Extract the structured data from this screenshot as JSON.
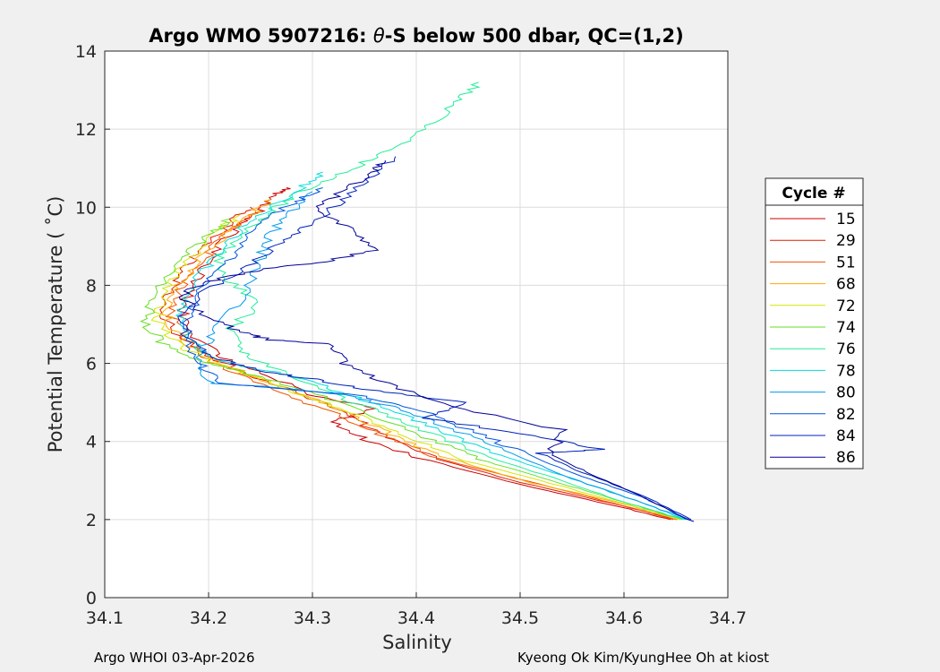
{
  "chart_data": {
    "type": "line",
    "title": "Argo WMO 5907216: θ-S below 500 dbar,  QC=(1,2)",
    "title_parts": {
      "prefix": "Argo WMO 5907216: ",
      "symbol": "θ",
      "suffix": "-S below 500 dbar,  QC=(1,2)"
    },
    "xlabel": "Salinity",
    "ylabel": "Potential Temperature ( ˚C)",
    "xlim": [
      34.1,
      34.7
    ],
    "ylim": [
      0,
      14
    ],
    "xticks": [
      34.1,
      34.2,
      34.3,
      34.4,
      34.5,
      34.6,
      34.7
    ],
    "xtick_labels": [
      "34.1",
      "34.2",
      "34.3",
      "34.4",
      "34.5",
      "34.6",
      "34.7"
    ],
    "yticks": [
      0,
      2,
      4,
      6,
      8,
      10,
      12,
      14
    ],
    "ytick_labels": [
      "0",
      "2",
      "4",
      "6",
      "8",
      "10",
      "12",
      "14"
    ],
    "grid": true,
    "legend_title": "Cycle #",
    "legend_position": "right",
    "series": [
      {
        "name": "15",
        "color": "#cc0000",
        "points": [
          [
            34.645,
            2.0
          ],
          [
            34.6,
            2.3
          ],
          [
            34.5,
            2.9
          ],
          [
            34.4,
            3.6
          ],
          [
            34.35,
            4.05
          ],
          [
            34.32,
            4.5
          ],
          [
            34.36,
            4.85
          ],
          [
            34.3,
            5.2
          ],
          [
            34.25,
            5.75
          ],
          [
            34.21,
            6.2
          ],
          [
            34.19,
            6.6
          ],
          [
            34.175,
            7.2
          ],
          [
            34.18,
            7.8
          ],
          [
            34.195,
            8.4
          ],
          [
            34.21,
            9.0
          ],
          [
            34.23,
            9.5
          ],
          [
            34.25,
            9.9
          ],
          [
            34.265,
            10.3
          ],
          [
            34.275,
            10.5
          ]
        ]
      },
      {
        "name": "29",
        "color": "#e01a00",
        "points": [
          [
            34.65,
            2.0
          ],
          [
            34.6,
            2.35
          ],
          [
            34.5,
            2.95
          ],
          [
            34.42,
            3.55
          ],
          [
            34.37,
            4.1
          ],
          [
            34.34,
            4.6
          ],
          [
            34.3,
            5.1
          ],
          [
            34.24,
            5.7
          ],
          [
            34.2,
            6.2
          ],
          [
            34.17,
            6.7
          ],
          [
            34.155,
            7.3
          ],
          [
            34.165,
            7.9
          ],
          [
            34.18,
            8.5
          ],
          [
            34.2,
            9.1
          ],
          [
            34.22,
            9.6
          ],
          [
            34.24,
            10.0
          ]
        ]
      },
      {
        "name": "51",
        "color": "#f25000",
        "points": [
          [
            34.648,
            2.0
          ],
          [
            34.6,
            2.35
          ],
          [
            34.52,
            2.9
          ],
          [
            34.43,
            3.5
          ],
          [
            34.38,
            4.0
          ],
          [
            34.34,
            4.5
          ],
          [
            34.29,
            5.05
          ],
          [
            34.24,
            5.6
          ],
          [
            34.2,
            6.1
          ],
          [
            34.18,
            6.6
          ],
          [
            34.165,
            7.2
          ],
          [
            34.17,
            7.8
          ],
          [
            34.19,
            8.4
          ],
          [
            34.205,
            9.0
          ],
          [
            34.225,
            9.5
          ],
          [
            34.245,
            9.9
          ]
        ]
      },
      {
        "name": "68",
        "color": "#ffaa00",
        "points": [
          [
            34.652,
            2.0
          ],
          [
            34.6,
            2.4
          ],
          [
            34.51,
            2.95
          ],
          [
            34.44,
            3.5
          ],
          [
            34.39,
            4.0
          ],
          [
            34.35,
            4.5
          ],
          [
            34.31,
            5.0
          ],
          [
            34.26,
            5.5
          ],
          [
            34.21,
            6.0
          ],
          [
            34.18,
            6.5
          ],
          [
            34.16,
            7.1
          ],
          [
            34.165,
            7.7
          ],
          [
            34.18,
            8.3
          ],
          [
            34.2,
            8.9
          ],
          [
            34.22,
            9.4
          ],
          [
            34.245,
            9.9
          ],
          [
            34.26,
            10.2
          ]
        ]
      },
      {
        "name": "72",
        "color": "#d4e600",
        "points": [
          [
            34.655,
            2.0
          ],
          [
            34.6,
            2.4
          ],
          [
            34.52,
            3.0
          ],
          [
            34.45,
            3.5
          ],
          [
            34.4,
            4.05
          ],
          [
            34.35,
            4.6
          ],
          [
            34.3,
            5.1
          ],
          [
            34.25,
            5.6
          ],
          [
            34.2,
            6.05
          ],
          [
            34.17,
            6.5
          ],
          [
            34.15,
            7.1
          ],
          [
            34.155,
            7.7
          ],
          [
            34.17,
            8.3
          ],
          [
            34.19,
            8.9
          ],
          [
            34.21,
            9.4
          ],
          [
            34.23,
            9.8
          ]
        ]
      },
      {
        "name": "74",
        "color": "#66dd22",
        "points": [
          [
            34.656,
            2.0
          ],
          [
            34.6,
            2.45
          ],
          [
            34.53,
            3.0
          ],
          [
            34.46,
            3.55
          ],
          [
            34.41,
            4.1
          ],
          [
            34.36,
            4.65
          ],
          [
            34.31,
            5.15
          ],
          [
            34.25,
            5.65
          ],
          [
            34.2,
            6.0
          ],
          [
            34.16,
            6.4
          ],
          [
            34.14,
            7.0
          ],
          [
            34.145,
            7.6
          ],
          [
            34.16,
            8.2
          ],
          [
            34.18,
            8.8
          ],
          [
            34.2,
            9.3
          ],
          [
            34.22,
            9.7
          ]
        ]
      },
      {
        "name": "76",
        "color": "#22ee99",
        "points": [
          [
            34.658,
            2.0
          ],
          [
            34.6,
            2.45
          ],
          [
            34.54,
            3.0
          ],
          [
            34.47,
            3.6
          ],
          [
            34.42,
            4.15
          ],
          [
            34.37,
            4.7
          ],
          [
            34.32,
            5.2
          ],
          [
            34.27,
            5.8
          ],
          [
            34.23,
            6.3
          ],
          [
            34.22,
            6.9
          ],
          [
            34.25,
            7.5
          ],
          [
            34.22,
            8.1
          ],
          [
            34.21,
            8.7
          ],
          [
            34.23,
            9.3
          ],
          [
            34.26,
            9.9
          ],
          [
            34.29,
            10.4
          ],
          [
            34.33,
            10.9
          ],
          [
            34.37,
            11.4
          ],
          [
            34.41,
            12.0
          ],
          [
            34.44,
            12.7
          ],
          [
            34.46,
            13.2
          ]
        ]
      },
      {
        "name": "78",
        "color": "#00dddd",
        "points": [
          [
            34.66,
            2.0
          ],
          [
            34.61,
            2.5
          ],
          [
            34.55,
            3.05
          ],
          [
            34.48,
            3.65
          ],
          [
            34.43,
            4.2
          ],
          [
            34.38,
            4.75
          ],
          [
            34.33,
            5.25
          ],
          [
            34.28,
            5.7
          ],
          [
            34.22,
            6.0
          ],
          [
            34.19,
            6.4
          ],
          [
            34.17,
            7.0
          ],
          [
            34.175,
            7.6
          ],
          [
            34.19,
            8.2
          ],
          [
            34.21,
            8.8
          ],
          [
            34.23,
            9.4
          ],
          [
            34.26,
            10.0
          ],
          [
            34.29,
            10.5
          ],
          [
            34.31,
            10.9
          ]
        ]
      },
      {
        "name": "80",
        "color": "#0099ee",
        "points": [
          [
            34.662,
            2.0
          ],
          [
            34.61,
            2.5
          ],
          [
            34.55,
            3.05
          ],
          [
            34.49,
            3.7
          ],
          [
            34.44,
            4.25
          ],
          [
            34.39,
            4.8
          ],
          [
            34.33,
            5.2
          ],
          [
            34.26,
            5.4
          ],
          [
            34.2,
            5.5
          ],
          [
            34.19,
            6.0
          ],
          [
            34.2,
            6.6
          ],
          [
            34.22,
            7.3
          ],
          [
            34.24,
            8.0
          ],
          [
            34.25,
            8.7
          ],
          [
            34.26,
            9.3
          ],
          [
            34.28,
            9.9
          ],
          [
            34.3,
            10.4
          ]
        ]
      },
      {
        "name": "82",
        "color": "#0055dd",
        "points": [
          [
            34.663,
            2.0
          ],
          [
            34.62,
            2.55
          ],
          [
            34.56,
            3.1
          ],
          [
            34.5,
            3.75
          ],
          [
            34.45,
            4.3
          ],
          [
            34.4,
            4.85
          ],
          [
            34.34,
            5.2
          ],
          [
            34.27,
            5.35
          ],
          [
            34.21,
            5.5
          ],
          [
            34.19,
            6.0
          ],
          [
            34.18,
            6.6
          ],
          [
            34.18,
            7.2
          ],
          [
            34.19,
            7.8
          ],
          [
            34.21,
            8.4
          ],
          [
            34.23,
            9.0
          ],
          [
            34.25,
            9.6
          ],
          [
            34.28,
            10.1
          ],
          [
            34.31,
            10.5
          ]
        ]
      },
      {
        "name": "84",
        "color": "#0022bb",
        "points": [
          [
            34.665,
            2.0
          ],
          [
            34.62,
            2.6
          ],
          [
            34.56,
            3.2
          ],
          [
            34.52,
            3.7
          ],
          [
            34.58,
            3.8
          ],
          [
            34.5,
            4.2
          ],
          [
            34.41,
            4.6
          ],
          [
            34.45,
            5.0
          ],
          [
            34.36,
            5.3
          ],
          [
            34.3,
            5.6
          ],
          [
            34.25,
            5.8
          ],
          [
            34.21,
            6.1
          ],
          [
            34.18,
            6.6
          ],
          [
            34.17,
            7.2
          ],
          [
            34.2,
            7.9
          ],
          [
            34.24,
            8.5
          ],
          [
            34.27,
            9.1
          ],
          [
            34.3,
            9.6
          ],
          [
            34.33,
            10.2
          ],
          [
            34.36,
            10.8
          ],
          [
            34.38,
            11.3
          ]
        ]
      },
      {
        "name": "86",
        "color": "#000099",
        "points": [
          [
            34.666,
            1.95
          ],
          [
            34.62,
            2.55
          ],
          [
            34.57,
            3.15
          ],
          [
            34.53,
            3.65
          ],
          [
            34.54,
            4.3
          ],
          [
            34.43,
            4.9
          ],
          [
            34.37,
            5.5
          ],
          [
            34.33,
            6.0
          ],
          [
            34.32,
            6.5
          ],
          [
            34.26,
            6.6
          ],
          [
            34.23,
            6.8
          ],
          [
            34.2,
            7.2
          ],
          [
            34.17,
            7.7
          ],
          [
            34.2,
            8.1
          ],
          [
            34.25,
            8.4
          ],
          [
            34.31,
            8.6
          ],
          [
            34.36,
            8.9
          ],
          [
            34.34,
            9.4
          ],
          [
            34.3,
            9.9
          ],
          [
            34.33,
            10.4
          ],
          [
            34.36,
            10.9
          ],
          [
            34.37,
            11.2
          ]
        ]
      }
    ]
  },
  "footer": {
    "left": "Argo WHOI 03-Apr-2026",
    "right": "Kyeong Ok Kim/KyungHee Oh at kiost"
  }
}
